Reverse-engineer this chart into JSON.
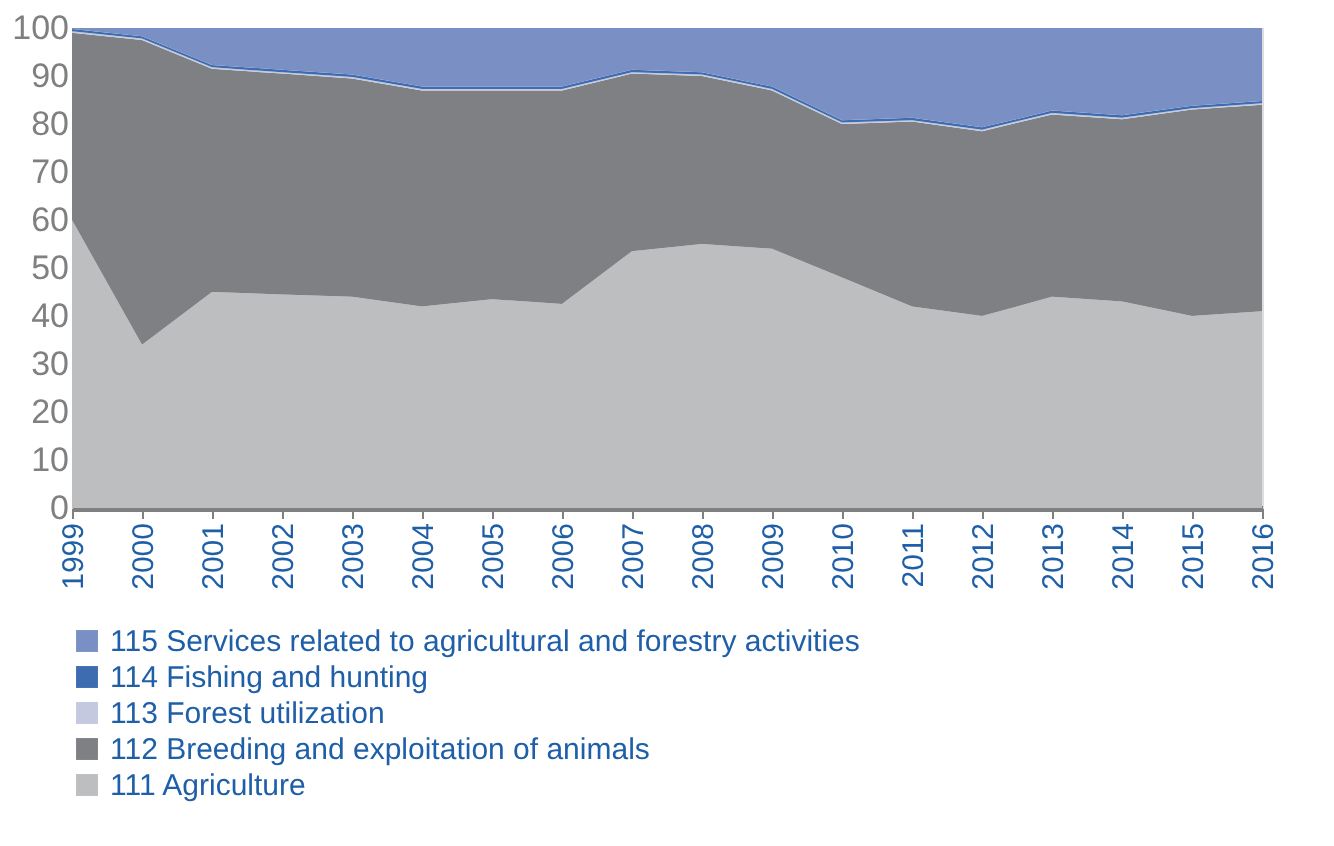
{
  "chart_data": {
    "type": "area",
    "stacked": true,
    "categories": [
      "1999",
      "2000",
      "2001",
      "2002",
      "2003",
      "2004",
      "2005",
      "2006",
      "2007",
      "2008",
      "2009",
      "2010",
      "2011",
      "2012",
      "2013",
      "2014",
      "2015",
      "2016"
    ],
    "series": [
      {
        "name": "111 Agriculture",
        "color": "#bdbec0",
        "values": [
          60,
          34,
          45,
          44.5,
          44,
          42,
          43.5,
          42.5,
          53.5,
          55,
          54,
          48,
          42,
          40,
          44,
          43,
          40,
          41
        ]
      },
      {
        "name": "112 Breeding and exploitation of animals",
        "color": "#7f8084",
        "values": [
          39,
          63.5,
          46.5,
          46,
          45.5,
          45,
          43.5,
          44.5,
          37,
          35,
          33,
          32,
          38.5,
          38.5,
          38,
          38,
          43,
          43
        ]
      },
      {
        "name": "113 Forest utilization",
        "color": "#c4c9e0",
        "values": [
          0.3,
          0.3,
          0.3,
          0.3,
          0.3,
          0.3,
          0.3,
          0.3,
          0.3,
          0.3,
          0.3,
          0.3,
          0.3,
          0.3,
          0.3,
          0.3,
          0.3,
          0.3
        ]
      },
      {
        "name": "114 Fishing and hunting",
        "color": "#3e6cb0",
        "values": [
          0.5,
          0.5,
          0.5,
          0.5,
          0.5,
          0.5,
          0.5,
          0.5,
          0.5,
          0.5,
          0.5,
          0.5,
          0.5,
          0.5,
          0.5,
          0.5,
          0.5,
          0.5
        ]
      },
      {
        "name": "115 Services related to agricultural and forestry activities",
        "color": "#7a90c4",
        "values": [
          0.2,
          1.7,
          7.7,
          8.7,
          9.7,
          12.2,
          12.2,
          12.2,
          8.7,
          9.2,
          12.2,
          19.2,
          18.7,
          20.7,
          17.2,
          18.2,
          16.2,
          15.2
        ]
      }
    ],
    "ylim": [
      0,
      100
    ],
    "yticks": [
      0,
      10,
      20,
      30,
      40,
      50,
      60,
      70,
      80,
      90,
      100
    ],
    "grid": false,
    "legend": "bottom"
  }
}
